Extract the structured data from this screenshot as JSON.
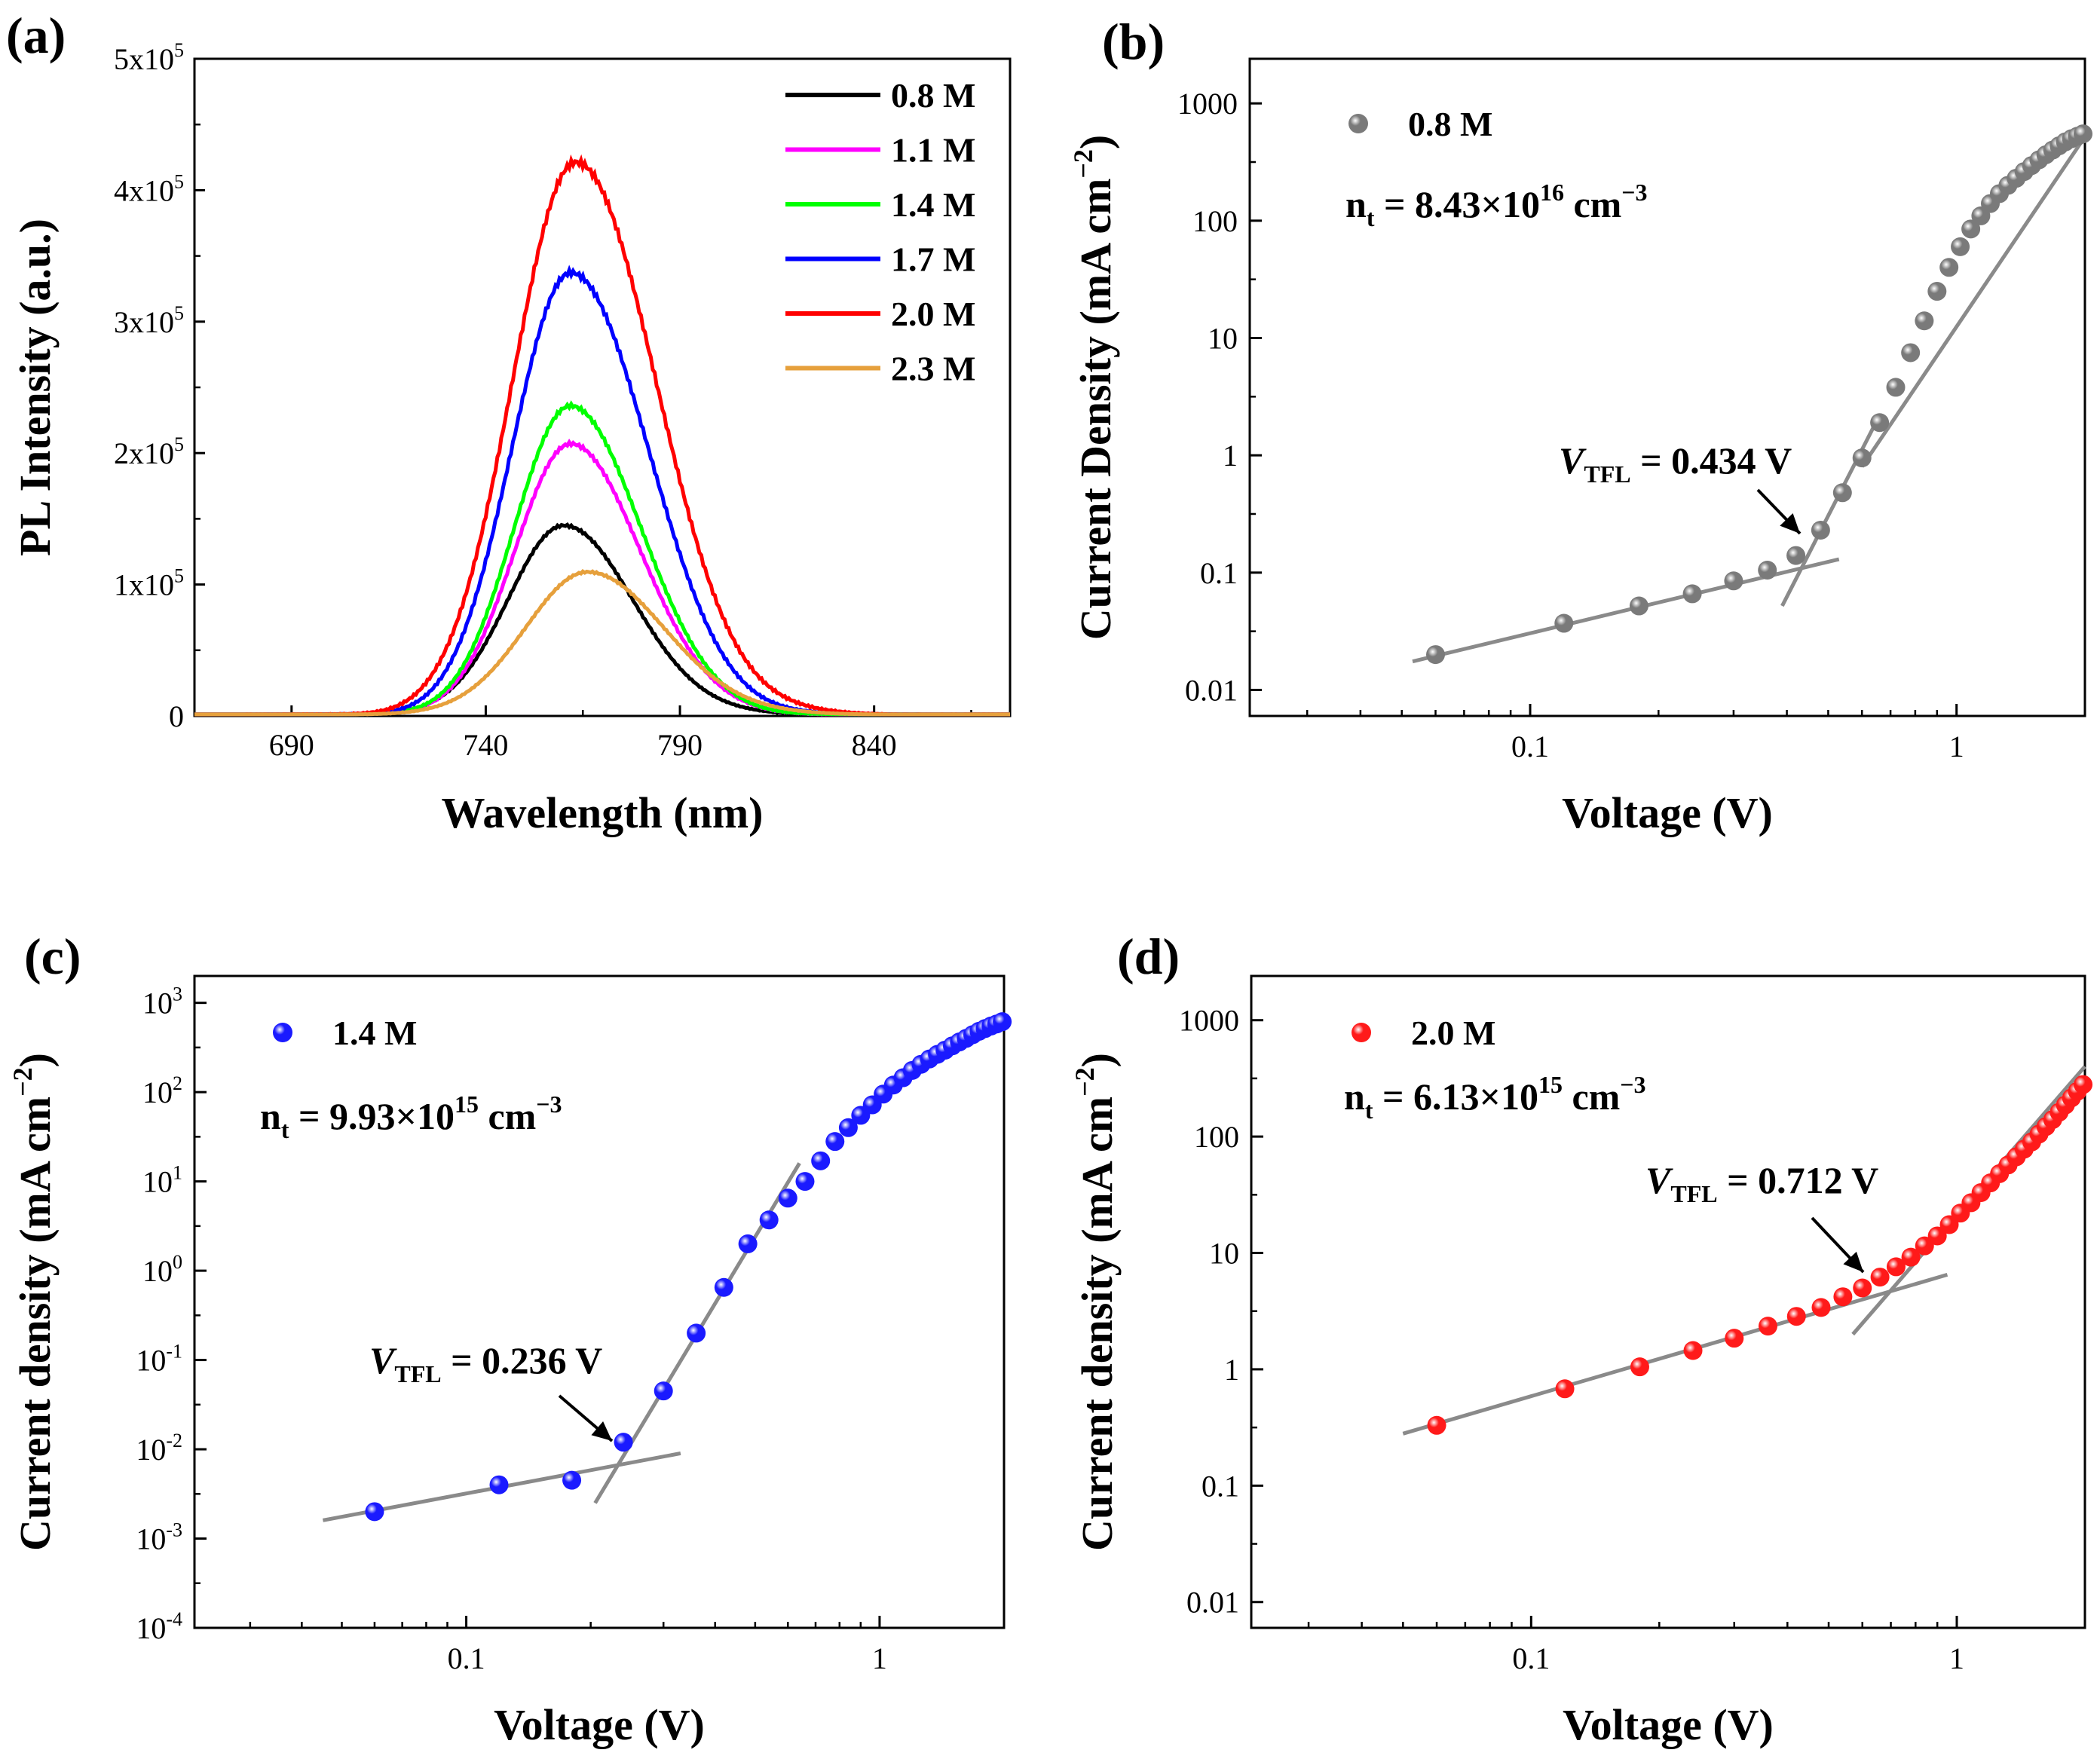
{
  "chart_data": [
    {
      "panel": "(a)",
      "type": "line",
      "xlabel": "Wavelength (nm)",
      "ylabel": "PL Intensity (a.u.)",
      "xlim": [
        665,
        875
      ],
      "ylim": [
        0,
        500000
      ],
      "x_ticks": [
        690,
        740,
        790,
        840
      ],
      "y_ticks": [
        {
          "value": 0,
          "label": "0"
        },
        {
          "value": 100000,
          "label": "1x10",
          "sup": "5"
        },
        {
          "value": 200000,
          "label": "2x10",
          "sup": "5"
        },
        {
          "value": 300000,
          "label": "3x10",
          "sup": "5"
        },
        {
          "value": 400000,
          "label": "4x10",
          "sup": "5"
        },
        {
          "value": 500000,
          "label": "5x10",
          "sup": "5"
        }
      ],
      "legend_position": "top-right",
      "series": [
        {
          "name": "0.8 M",
          "color": "#000000",
          "peak_nm": 760,
          "peak": 143000,
          "sigma_l": 14.5,
          "sigma_r": 18
        },
        {
          "name": "1.1 M",
          "color": "#ff00ff",
          "peak_nm": 762,
          "peak": 205000,
          "sigma_l": 14.5,
          "sigma_r": 18
        },
        {
          "name": "1.4 M",
          "color": "#00ff00",
          "peak_nm": 762,
          "peak": 235000,
          "sigma_l": 14.5,
          "sigma_r": 18
        },
        {
          "name": "1.7 M",
          "color": "#0000ff",
          "peak_nm": 762,
          "peak": 338000,
          "sigma_l": 15,
          "sigma_r": 19.5
        },
        {
          "name": "2.0 M",
          "color": "#ff0000",
          "peak_nm": 763,
          "peak": 422000,
          "sigma_l": 16,
          "sigma_r": 20.5
        },
        {
          "name": "2.3 M",
          "color": "#e6a03c",
          "peak_nm": 766,
          "peak": 108000,
          "sigma_l": 16,
          "sigma_r": 20
        }
      ]
    },
    {
      "panel": "(b)",
      "type": "scatter",
      "xlabel": "Voltage (V)",
      "ylabel": "Current Density (mA cm",
      "ylabel_sup": "−2",
      "ylabel_end": ")",
      "xscale": "log",
      "yscale": "log",
      "xlim": [
        0.022,
        2.0
      ],
      "ylim": [
        0.006,
        2400
      ],
      "x_ticks": [
        {
          "value": 0.1,
          "label": "0.1"
        },
        {
          "value": 1,
          "label": "1"
        }
      ],
      "y_ticks": [
        {
          "value": 0.01,
          "label": "0.01"
        },
        {
          "value": 0.1,
          "label": "0.1"
        },
        {
          "value": 1,
          "label": "1"
        },
        {
          "value": 10,
          "label": "10"
        },
        {
          "value": 100,
          "label": "100"
        },
        {
          "value": 1000,
          "label": "1000"
        }
      ],
      "legend": "0.8 M",
      "marker_color": "#7a7a7a",
      "n_t": {
        "prefix": "n",
        "sub": "t",
        "mid": " = 8.43×10",
        "sup": "16",
        "unit": " cm",
        "unit_sup": "−3"
      },
      "vtfl": {
        "label": "V",
        "sub": "TFL",
        "text": " = 0.434 V",
        "value": 0.434
      },
      "points": [
        [
          0.06,
          0.02
        ],
        [
          0.12,
          0.037
        ],
        [
          0.18,
          0.052
        ],
        [
          0.24,
          0.066
        ],
        [
          0.3,
          0.085
        ],
        [
          0.36,
          0.105
        ],
        [
          0.42,
          0.14
        ],
        [
          0.48,
          0.23
        ],
        [
          0.54,
          0.48
        ],
        [
          0.6,
          0.95
        ],
        [
          0.66,
          1.9
        ],
        [
          0.72,
          3.8
        ],
        [
          0.78,
          7.5
        ],
        [
          0.84,
          14
        ],
        [
          0.9,
          25
        ],
        [
          0.96,
          40
        ],
        [
          1.02,
          60
        ],
        [
          1.08,
          85
        ],
        [
          1.14,
          110
        ],
        [
          1.2,
          140
        ],
        [
          1.26,
          170
        ],
        [
          1.32,
          200
        ],
        [
          1.38,
          230
        ],
        [
          1.44,
          262
        ],
        [
          1.5,
          295
        ],
        [
          1.56,
          330
        ],
        [
          1.62,
          365
        ],
        [
          1.68,
          400
        ],
        [
          1.74,
          435
        ],
        [
          1.8,
          470
        ],
        [
          1.86,
          500
        ],
        [
          1.92,
          525
        ],
        [
          1.98,
          550
        ]
      ],
      "fits": [
        [
          [
            0.053,
            0.0175
          ],
          [
            0.53,
            0.13
          ]
        ],
        [
          [
            0.39,
            0.052
          ],
          [
            0.66,
            2.2
          ]
        ],
        [
          [
            0.6,
            0.8
          ],
          [
            2.0,
            520
          ]
        ]
      ]
    },
    {
      "panel": "(c)",
      "type": "scatter",
      "xlabel": "Voltage (V)",
      "ylabel": "Current density (mA cm",
      "ylabel_sup": "−2",
      "ylabel_end": ")",
      "xscale": "log",
      "yscale": "log",
      "xlim": [
        0.022,
        2.0
      ],
      "ylim": [
        0.0001,
        2000
      ],
      "x_ticks": [
        {
          "value": 0.1,
          "label": "0.1"
        },
        {
          "value": 1,
          "label": "1"
        }
      ],
      "y_ticks": [
        {
          "value": 0.0001,
          "label": "10",
          "sup": "-4"
        },
        {
          "value": 0.001,
          "label": "10",
          "sup": "-3"
        },
        {
          "value": 0.01,
          "label": "10",
          "sup": "-2"
        },
        {
          "value": 0.1,
          "label": "10",
          "sup": "-1"
        },
        {
          "value": 1,
          "label": "10",
          "sup": "0"
        },
        {
          "value": 10,
          "label": "10",
          "sup": "1"
        },
        {
          "value": 100,
          "label": "10",
          "sup": "2"
        },
        {
          "value": 1000,
          "label": "10",
          "sup": "3"
        }
      ],
      "legend": "1.4 M",
      "marker_color": "#1a1aff",
      "n_t": {
        "prefix": "n",
        "sub": "t",
        "mid": " = 9.93×10",
        "sup": "15",
        "unit": " cm",
        "unit_sup": "−3"
      },
      "vtfl": {
        "label": "V",
        "sub": "TFL",
        "text": " = 0.236 V",
        "value": 0.236
      },
      "points": [
        [
          0.06,
          0.002
        ],
        [
          0.12,
          0.004
        ],
        [
          0.18,
          0.0045
        ],
        [
          0.24,
          0.012
        ],
        [
          0.3,
          0.045
        ],
        [
          0.36,
          0.2
        ],
        [
          0.42,
          0.65
        ],
        [
          0.48,
          2.0
        ],
        [
          0.54,
          3.7
        ],
        [
          0.6,
          6.5
        ],
        [
          0.66,
          10
        ],
        [
          0.72,
          17
        ],
        [
          0.78,
          28
        ],
        [
          0.84,
          40
        ],
        [
          0.9,
          55
        ],
        [
          0.96,
          72
        ],
        [
          1.02,
          95
        ],
        [
          1.08,
          120
        ],
        [
          1.14,
          145
        ],
        [
          1.2,
          175
        ],
        [
          1.26,
          205
        ],
        [
          1.32,
          235
        ],
        [
          1.38,
          265
        ],
        [
          1.44,
          295
        ],
        [
          1.5,
          330
        ],
        [
          1.56,
          365
        ],
        [
          1.62,
          400
        ],
        [
          1.68,
          440
        ],
        [
          1.74,
          480
        ],
        [
          1.8,
          515
        ],
        [
          1.86,
          550
        ],
        [
          1.92,
          580
        ],
        [
          1.98,
          615
        ]
      ],
      "fits": [
        [
          [
            0.045,
            0.0016
          ],
          [
            0.33,
            0.009
          ]
        ],
        [
          [
            0.205,
            0.0025
          ],
          [
            0.64,
            16
          ]
        ]
      ]
    },
    {
      "panel": "(d)",
      "type": "scatter",
      "xlabel": "Voltage (V)",
      "ylabel": "Current density (mA cm",
      "ylabel_sup": "−2",
      "ylabel_end": ")",
      "xscale": "log",
      "yscale": "log",
      "xlim": [
        0.022,
        2.0
      ],
      "ylim": [
        0.006,
        2400
      ],
      "x_ticks": [
        {
          "value": 0.1,
          "label": "0.1"
        },
        {
          "value": 1,
          "label": "1"
        }
      ],
      "y_ticks": [
        {
          "value": 0.01,
          "label": "0.01"
        },
        {
          "value": 0.1,
          "label": "0.1"
        },
        {
          "value": 1,
          "label": "1"
        },
        {
          "value": 10,
          "label": "10"
        },
        {
          "value": 100,
          "label": "100"
        },
        {
          "value": 1000,
          "label": "1000"
        }
      ],
      "legend": "2.0 M",
      "marker_color": "#ff1a1a",
      "n_t": {
        "prefix": "n",
        "sub": "t",
        "mid": " = 6.13×10",
        "sup": "15",
        "unit": " cm",
        "unit_sup": "−3"
      },
      "vtfl": {
        "label": "V",
        "sub": "TFL",
        "text": " = 0.712 V",
        "value": 0.712
      },
      "points": [
        [
          0.06,
          0.33
        ],
        [
          0.12,
          0.68
        ],
        [
          0.18,
          1.05
        ],
        [
          0.24,
          1.45
        ],
        [
          0.3,
          1.85
        ],
        [
          0.36,
          2.35
        ],
        [
          0.42,
          2.85
        ],
        [
          0.48,
          3.4
        ],
        [
          0.54,
          4.2
        ],
        [
          0.6,
          5.0
        ],
        [
          0.66,
          6.2
        ],
        [
          0.72,
          7.6
        ],
        [
          0.78,
          9.2
        ],
        [
          0.84,
          11.5
        ],
        [
          0.9,
          14
        ],
        [
          0.96,
          17.5
        ],
        [
          1.02,
          22
        ],
        [
          1.08,
          27
        ],
        [
          1.14,
          33
        ],
        [
          1.2,
          40
        ],
        [
          1.26,
          48
        ],
        [
          1.32,
          57
        ],
        [
          1.38,
          67
        ],
        [
          1.44,
          78
        ],
        [
          1.5,
          90
        ],
        [
          1.56,
          105
        ],
        [
          1.62,
          122
        ],
        [
          1.68,
          140
        ],
        [
          1.74,
          162
        ],
        [
          1.8,
          187
        ],
        [
          1.86,
          215
        ],
        [
          1.92,
          245
        ],
        [
          1.98,
          280
        ]
      ],
      "fits": [
        [
          [
            0.05,
            0.28
          ],
          [
            0.95,
            6.5
          ]
        ],
        [
          [
            0.57,
            2.0
          ],
          [
            2.0,
            400
          ]
        ]
      ]
    }
  ]
}
